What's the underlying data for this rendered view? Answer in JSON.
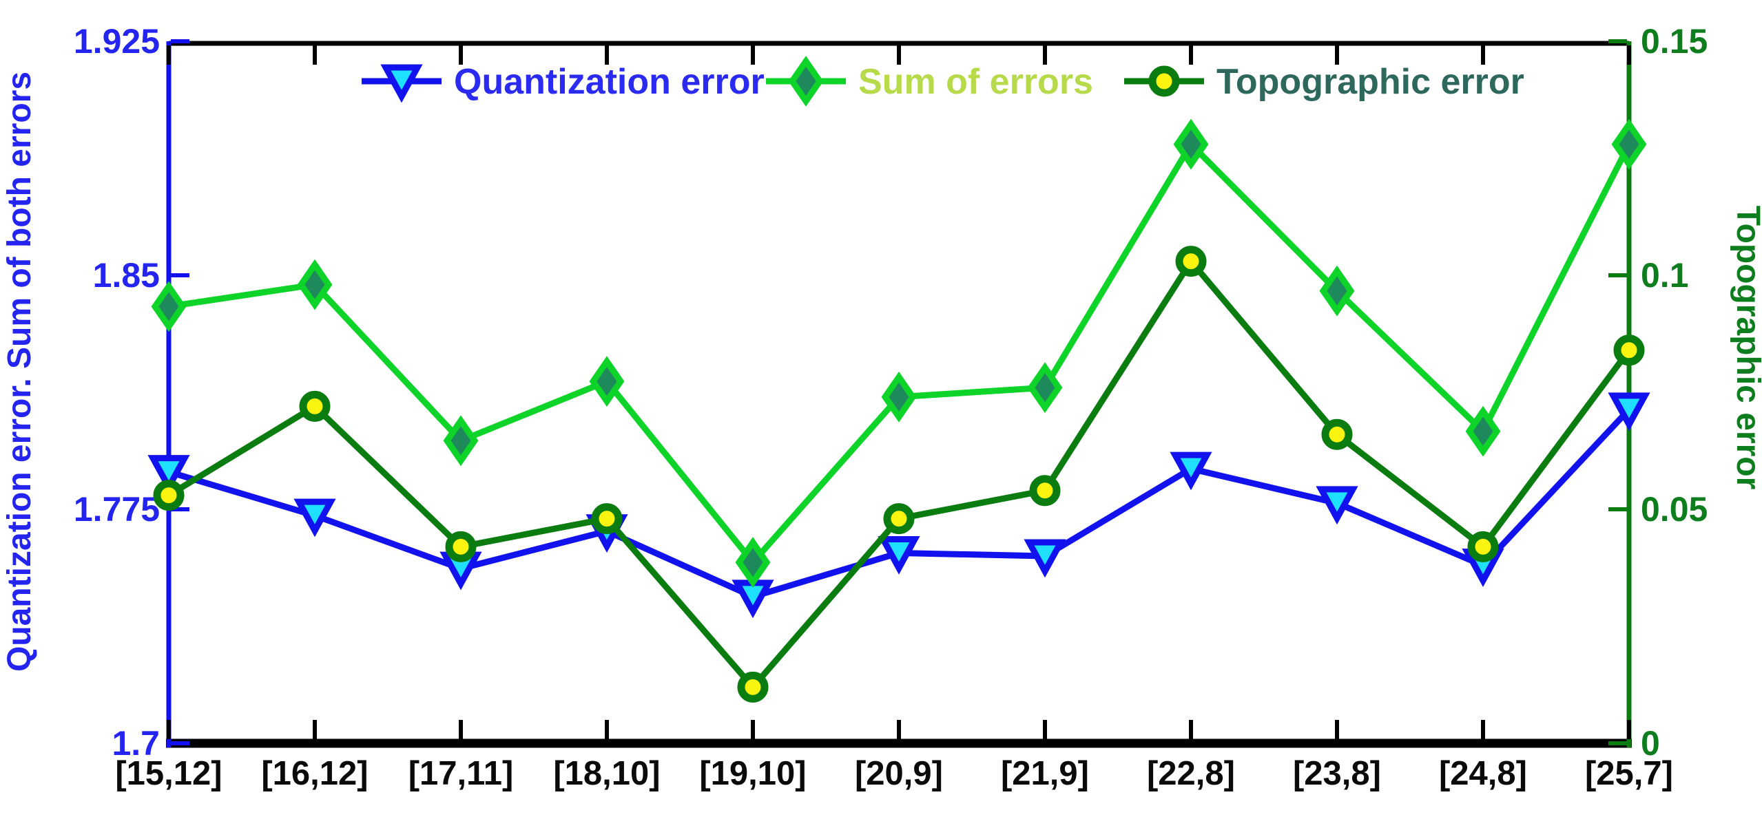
{
  "chart_data": {
    "type": "line",
    "title": "",
    "categories": [
      "[15,12]",
      "[16,12]",
      "[17,11]",
      "[18,10]",
      "[19,10]",
      "[20,9]",
      "[21,9]",
      "[22,8]",
      "[23,8]",
      "[24,8]",
      "[25,7]"
    ],
    "series": [
      {
        "name": "Quantization error",
        "axis": "left",
        "marker": "triangle-down",
        "values": [
          1.787,
          1.773,
          1.756,
          1.768,
          1.747,
          1.761,
          1.76,
          1.788,
          1.777,
          1.757,
          1.807
        ],
        "line_color": "#1212ef",
        "marker_fill": "#20e0ff",
        "marker_edge": "#1212ef",
        "legend_text_color": "#2a2af0"
      },
      {
        "name": "Sum of errors",
        "axis": "left",
        "marker": "diamond",
        "values": [
          1.84,
          1.847,
          1.797,
          1.816,
          1.758,
          1.811,
          1.814,
          1.892,
          1.845,
          1.8,
          1.892
        ],
        "line_color": "#0ed42a",
        "marker_fill": "#1e8a5c",
        "marker_edge": "#0ed42a",
        "legend_text_color": "#b7da4a"
      },
      {
        "name": "Topographic error",
        "axis": "right",
        "marker": "circle",
        "values": [
          0.053,
          0.072,
          0.042,
          0.048,
          0.012,
          0.048,
          0.054,
          0.103,
          0.066,
          0.042,
          0.084
        ],
        "line_color": "#0b7d10",
        "marker_fill": "#fbf411",
        "marker_edge": "#0b7d10",
        "legend_text_color": "#2e685c"
      }
    ],
    "left_axis": {
      "label": "Quantization error. Sum of both errors",
      "tick_labels": [
        "1.925",
        "1.85",
        "1.775",
        "1.7"
      ],
      "tick_values": [
        1.925,
        1.85,
        1.775,
        1.7
      ],
      "min": 1.7,
      "max": 1.925,
      "color": "#2424f0",
      "spine_color": "#1212ef"
    },
    "right_axis": {
      "label": "Topographic error",
      "tick_labels": [
        "0.15",
        "0.1",
        "0.05",
        "0"
      ],
      "tick_values": [
        0.15,
        0.1,
        0.05,
        0
      ],
      "min": 0,
      "max": 0.15,
      "color": "#0e7d1d",
      "spine_color": "#0b7d10"
    },
    "x_axis": {
      "tick_label_color": "#0a0a0a",
      "spine_color": "#000000"
    },
    "legend_position": "top-inside",
    "grid": false
  }
}
